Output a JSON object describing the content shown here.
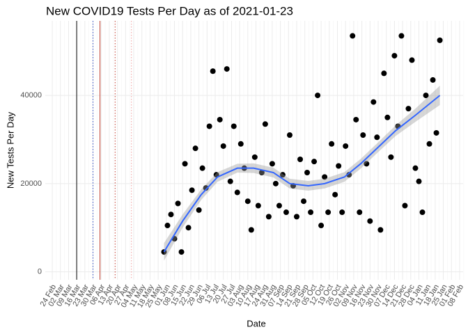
{
  "chart_data": {
    "type": "scatter",
    "title": "New COVID19 Tests Per Day as of 2021-01-23",
    "x_label": "Date",
    "y_label": "New Tests Per Day",
    "xlim": [
      "18 Feb",
      "11 Feb"
    ],
    "ylim": [
      -1800,
      56900
    ],
    "yticks": [
      0,
      20000,
      40000
    ],
    "grid": true,
    "xticks": [
      "24 Feb",
      "02 Mar",
      "09 Mar",
      "16 Mar",
      "23 Mar",
      "30 Mar",
      "06 Apr",
      "13 Apr",
      "20 Apr",
      "27 Apr",
      "04 May",
      "11 May",
      "18 May",
      "25 May",
      "01 Jun",
      "08 Jun",
      "15 Jun",
      "22 Jun",
      "29 Jun",
      "06 Jul",
      "13 Jul",
      "20 Jul",
      "27 Jul",
      "03 Aug",
      "10 Aug",
      "17 Aug",
      "24 Aug",
      "31 Aug",
      "07 Sep",
      "14 Sep",
      "21 Sep",
      "28 Sep",
      "05 Oct",
      "12 Oct",
      "19 Oct",
      "26 Oct",
      "02 Nov",
      "09 Nov",
      "16 Nov",
      "23 Nov",
      "30 Nov",
      "07 Dec",
      "14 Dec",
      "21 Dec",
      "28 Dec",
      "04 Jan",
      "11 Jan",
      "18 Jan",
      "25 Jan",
      "01 Feb",
      "08 Feb"
    ],
    "vlines": [
      {
        "x": "16 Mar",
        "color": "#000000",
        "dash": "solid"
      },
      {
        "x": "30 Mar",
        "color": "#1f3fbf",
        "dash": "dotted"
      },
      {
        "x": "05 Apr",
        "color": "#c0392b",
        "dash": "solid"
      },
      {
        "x": "18 Apr",
        "color": "#c0392b",
        "dash": "dotted"
      },
      {
        "x": "02 May",
        "color": "#f0a0a0",
        "dash": "dotted"
      }
    ],
    "series": [
      {
        "color": "#000000",
        "x": [
          "30 May",
          "02 Jun",
          "05 Jun",
          "08 Jun",
          "11 Jun",
          "14 Jun",
          "17 Jun",
          "20 Jun",
          "23 Jun",
          "26 Jun",
          "29 Jun",
          "02 Jul",
          "05 Jul",
          "08 Jul",
          "11 Jul",
          "14 Jul",
          "17 Jul",
          "20 Jul",
          "23 Jul",
          "26 Jul",
          "29 Jul",
          "01 Aug",
          "04 Aug",
          "07 Aug",
          "10 Aug",
          "13 Aug",
          "16 Aug",
          "19 Aug",
          "22 Aug",
          "25 Aug",
          "28 Aug",
          "31 Aug",
          "03 Sep",
          "06 Sep",
          "09 Sep",
          "12 Sep",
          "15 Sep",
          "18 Sep",
          "21 Sep",
          "24 Sep",
          "27 Sep",
          "30 Sep",
          "03 Oct",
          "06 Oct",
          "09 Oct",
          "12 Oct",
          "15 Oct",
          "18 Oct",
          "21 Oct",
          "24 Oct",
          "27 Oct",
          "30 Oct",
          "02 Nov",
          "05 Nov",
          "08 Nov",
          "11 Nov",
          "14 Nov",
          "17 Nov",
          "20 Nov",
          "23 Nov",
          "26 Nov",
          "29 Nov",
          "02 Dec",
          "05 Dec",
          "08 Dec",
          "11 Dec",
          "14 Dec",
          "17 Dec",
          "20 Dec",
          "23 Dec",
          "26 Dec",
          "29 Dec",
          "01 Jan",
          "04 Jan",
          "07 Jan",
          "10 Jan",
          "13 Jan",
          "16 Jan",
          "19 Jan",
          "22 Jan"
        ],
        "values": [
          4500,
          10500,
          13000,
          7500,
          15500,
          4500,
          24500,
          10000,
          18500,
          28000,
          14000,
          23500,
          19000,
          33000,
          45500,
          22000,
          34500,
          28500,
          46000,
          20500,
          33000,
          18000,
          29000,
          23500,
          16000,
          9500,
          26000,
          15000,
          22500,
          33500,
          12500,
          24500,
          20000,
          15000,
          22000,
          13500,
          31000,
          19500,
          12500,
          25500,
          16000,
          22500,
          13500,
          25000,
          40000,
          10500,
          21500,
          13500,
          29000,
          17500,
          24000,
          13500,
          28500,
          22000,
          53500,
          34500,
          13500,
          31000,
          24500,
          11500,
          38500,
          30500,
          9500,
          45000,
          35000,
          26000,
          49000,
          33000,
          53500,
          15000,
          37000,
          48000,
          23500,
          20500,
          13500,
          40000,
          29000,
          43500,
          31500,
          52500
        ]
      }
    ],
    "smooth": {
      "color": "#3366ff",
      "x": [
        "30 May",
        "15 Jun",
        "01 Jul",
        "15 Jul",
        "01 Aug",
        "15 Aug",
        "01 Sep",
        "15 Sep",
        "01 Oct",
        "15 Oct",
        "01 Nov",
        "15 Nov",
        "01 Dec",
        "15 Dec",
        "01 Jan",
        "22 Jan"
      ],
      "values": [
        4500,
        11500,
        17500,
        21500,
        23500,
        23500,
        22500,
        20000,
        19500,
        20000,
        21500,
        24500,
        28500,
        32000,
        35500,
        40000
      ],
      "lower": [
        2500,
        10000,
        16300,
        20400,
        22500,
        22400,
        21400,
        18900,
        18400,
        18900,
        20400,
        23400,
        27400,
        30800,
        34000,
        37800
      ],
      "upper": [
        6500,
        13000,
        18700,
        22600,
        24500,
        24600,
        23600,
        21100,
        20600,
        21100,
        22600,
        25600,
        29600,
        33200,
        37000,
        42200
      ]
    }
  }
}
